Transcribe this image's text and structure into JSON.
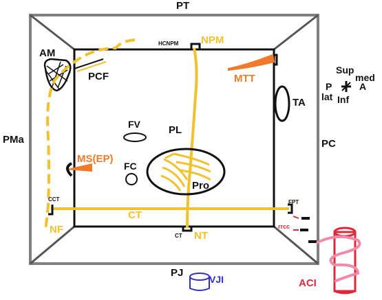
{
  "borders": {
    "top": "PT",
    "left": "PMa",
    "right": "PC",
    "bottom": "PJ"
  },
  "structures": {
    "am": "AM",
    "pcf": "PCF",
    "hcnpm": "HCNPM",
    "npm": "NPM",
    "mtt": "MTT",
    "ta": "TA",
    "fv": "FV",
    "pl": "PL",
    "ms_ep": "MS(EP)",
    "fc": "FC",
    "pro": "Pro",
    "cct": "CCT",
    "fpt": "FPT",
    "ct": "CT",
    "rrcc": "rrcc",
    "nf": "NF",
    "ct_small": "CT",
    "nt": "NT",
    "vji": "VJI",
    "aci": "ACI"
  },
  "orientation": {
    "sup": "Sup",
    "med": "med",
    "p": "P",
    "a": "A",
    "lat": "lat",
    "inf": "Inf"
  },
  "colors": {
    "nerve": "#f2c12e",
    "muscle": "#f07a2a",
    "artery": "#e0263a",
    "vein": "#2f2fc0",
    "frame": "#808080",
    "outline": "#111111",
    "sympathetic": "#f08aa8"
  }
}
